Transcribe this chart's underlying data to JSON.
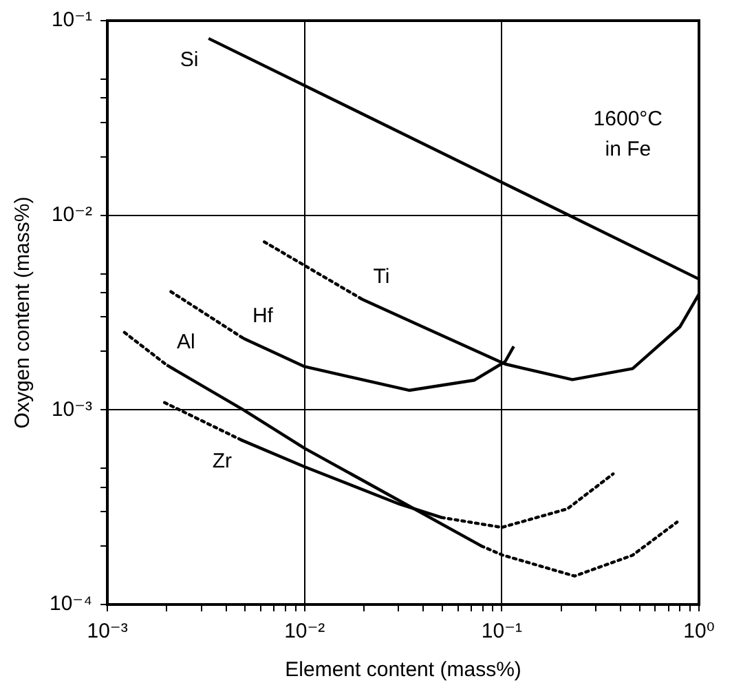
{
  "chart_data": {
    "type": "line",
    "xlabel": "Element content (mass%)",
    "ylabel": "Oxygen content (mass%)",
    "log": "xy",
    "grid": true,
    "legend": false,
    "marker": "none",
    "xlim": [
      0.001,
      1
    ],
    "ylim": [
      0.0001,
      0.1
    ],
    "xticks": [
      {
        "value": 0.001,
        "label": "10⁻³"
      },
      {
        "value": 0.002,
        "label": null
      },
      {
        "value": 0.003,
        "label": null
      },
      {
        "value": 0.004,
        "label": null
      },
      {
        "value": 0.005,
        "label": null
      },
      {
        "value": 0.006,
        "label": null
      },
      {
        "value": 0.007,
        "label": null
      },
      {
        "value": 0.008,
        "label": null
      },
      {
        "value": 0.009,
        "label": null
      },
      {
        "value": 0.01,
        "label": "10⁻²"
      },
      {
        "value": 0.02,
        "label": null
      },
      {
        "value": 0.03,
        "label": null
      },
      {
        "value": 0.04,
        "label": null
      },
      {
        "value": 0.05,
        "label": null
      },
      {
        "value": 0.06,
        "label": null
      },
      {
        "value": 0.07,
        "label": null
      },
      {
        "value": 0.08,
        "label": null
      },
      {
        "value": 0.09,
        "label": null
      },
      {
        "value": 0.1,
        "label": "10⁻¹"
      },
      {
        "value": 0.2,
        "label": null
      },
      {
        "value": 0.3,
        "label": null
      },
      {
        "value": 0.4,
        "label": null
      },
      {
        "value": 0.5,
        "label": null
      },
      {
        "value": 0.6,
        "label": null
      },
      {
        "value": 0.7,
        "label": null
      },
      {
        "value": 0.8,
        "label": null
      },
      {
        "value": 0.9,
        "label": null
      },
      {
        "value": 1,
        "label": "10⁰"
      }
    ],
    "yticks": [
      {
        "value": 0.0001,
        "label": "10⁻⁴"
      },
      {
        "value": 0.0002,
        "label": null
      },
      {
        "value": 0.0003,
        "label": null
      },
      {
        "value": 0.0004,
        "label": null
      },
      {
        "value": 0.0005,
        "label": null
      },
      {
        "value": 0.001,
        "label": "10⁻³"
      },
      {
        "value": 0.002,
        "label": null
      },
      {
        "value": 0.003,
        "label": null
      },
      {
        "value": 0.004,
        "label": null
      },
      {
        "value": 0.005,
        "label": null
      },
      {
        "value": 0.01,
        "label": "10⁻²"
      },
      {
        "value": 0.02,
        "label": null
      },
      {
        "value": 0.03,
        "label": null
      },
      {
        "value": 0.04,
        "label": null
      },
      {
        "value": 0.05,
        "label": null
      },
      {
        "value": 0.1,
        "label": "10⁻¹"
      }
    ],
    "series": [
      {
        "name": "Si",
        "color": "#000000",
        "line_style": "solid",
        "x": [
          0.00326,
          1
        ],
        "values": [
          0.081,
          0.0047
        ]
      },
      {
        "color": "#000000",
        "line_style": "dotted",
        "x": [
          0.00625,
          0.0196
        ],
        "values": [
          0.0073,
          0.0037
        ]
      },
      {
        "name": "Ti",
        "color": "#000000",
        "line_style": "solid",
        "x": [
          0.0196,
          0.0398,
          0.104,
          0.228,
          0.461,
          0.8,
          1
        ],
        "values": [
          0.0037,
          0.00267,
          0.00172,
          0.00143,
          0.00163,
          0.00267,
          0.00394
        ]
      },
      {
        "color": "#000000",
        "line_style": "dotted",
        "x": [
          0.0021,
          0.0049
        ],
        "values": [
          0.00405,
          0.00233
        ]
      },
      {
        "name": "Hf",
        "color": "#000000",
        "line_style": "solid",
        "x": [
          0.0049,
          0.01,
          0.0339,
          0.0724,
          0.104,
          0.115
        ],
        "values": [
          0.00233,
          0.00167,
          0.00126,
          0.00142,
          0.00177,
          0.00212
        ]
      },
      {
        "color": "#000000",
        "line_style": "dotted",
        "x": [
          0.00122,
          0.002
        ],
        "values": [
          0.0025,
          0.0017
        ]
      },
      {
        "name": "Al",
        "color": "#000000",
        "line_style": "solid",
        "x": [
          0.002,
          0.0049,
          0.01,
          0.0787
        ],
        "values": [
          0.0017,
          0.001,
          0.000635,
          0.0002
        ]
      },
      {
        "color": "#000000",
        "line_style": "dotted",
        "x": [
          0.0787,
          0.1,
          0.234,
          0.46,
          0.774
        ],
        "values": [
          0.0002,
          0.00018,
          0.00014,
          0.000179,
          0.000265
        ]
      },
      {
        "color": "#000000",
        "line_style": "dotted",
        "x": [
          0.00195,
          0.00478
        ],
        "values": [
          0.00109,
          0.0007
        ]
      },
      {
        "name": "Zr",
        "color": "#000000",
        "line_style": "solid",
        "x": [
          0.00478,
          0.01,
          0.0303,
          0.0495
        ],
        "values": [
          0.0007,
          0.00051,
          0.000328,
          0.00028
        ]
      },
      {
        "color": "#000000",
        "line_style": "dotted",
        "x": [
          0.0495,
          0.1,
          0.215,
          0.367
        ],
        "values": [
          0.00028,
          0.000249,
          0.00031,
          0.000469
        ]
      }
    ],
    "annotations": [
      "1600°C",
      "in Fe"
    ]
  }
}
